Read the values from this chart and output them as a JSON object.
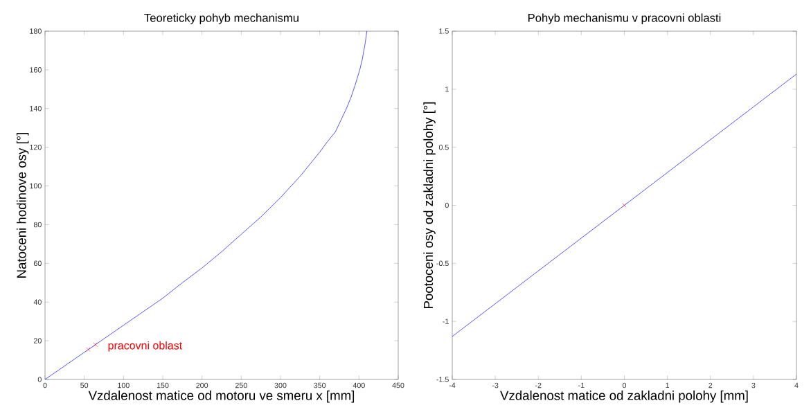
{
  "chart_data": [
    {
      "type": "line",
      "title": "Teoreticky pohyb mechanismu",
      "xlabel": "Vzdalenost matice od motoru ve smeru x [mm]",
      "ylabel": "Natoceni hodinove osy [°]",
      "xlim": [
        0,
        450
      ],
      "ylim": [
        0,
        180
      ],
      "xticks": [
        0,
        50,
        100,
        150,
        200,
        250,
        300,
        350,
        400,
        450
      ],
      "yticks": [
        0,
        20,
        40,
        60,
        80,
        100,
        120,
        140,
        160,
        180
      ],
      "series": [
        {
          "color": "#0000ff",
          "x": [
            0,
            25,
            50,
            75,
            100,
            125,
            150,
            175,
            200,
            225,
            250,
            275,
            300,
            325,
            350,
            360,
            370,
            384,
            390,
            395,
            401,
            404,
            408,
            410
          ],
          "values": [
            0,
            7,
            14,
            21,
            28,
            35,
            42,
            50,
            57.6,
            66,
            75,
            84,
            94,
            105,
            117.5,
            123,
            128,
            140,
            146,
            152,
            160,
            165,
            174,
            180
          ]
        },
        {
          "type": "scatter",
          "marker": "cross",
          "color": "#ff0000",
          "x": [
            55,
            64
          ],
          "values": [
            15.5,
            18
          ]
        }
      ],
      "annotations": [
        "pracovni oblast"
      ]
    },
    {
      "type": "line",
      "title": "Pohyb mechanismu v pracovni oblasti",
      "xlabel": "Vzdalenost matice od zakladni polohy [mm]",
      "ylabel": "Pootoceni osy od zakladni polohy [°]",
      "xlim": [
        -4,
        4
      ],
      "ylim": [
        -1.5,
        1.5
      ],
      "xticks": [
        -4,
        -3,
        -2,
        -1,
        0,
        1,
        2,
        3,
        4
      ],
      "yticks": [
        -1.5,
        -1,
        -0.5,
        0,
        0.5,
        1,
        1.5
      ],
      "series": [
        {
          "color": "#0000ff",
          "x": [
            -4,
            4
          ],
          "values": [
            -1.13,
            1.13
          ]
        },
        {
          "type": "scatter",
          "marker": "cross",
          "color": "#ff0000",
          "x": [
            0
          ],
          "values": [
            0
          ]
        }
      ]
    }
  ]
}
